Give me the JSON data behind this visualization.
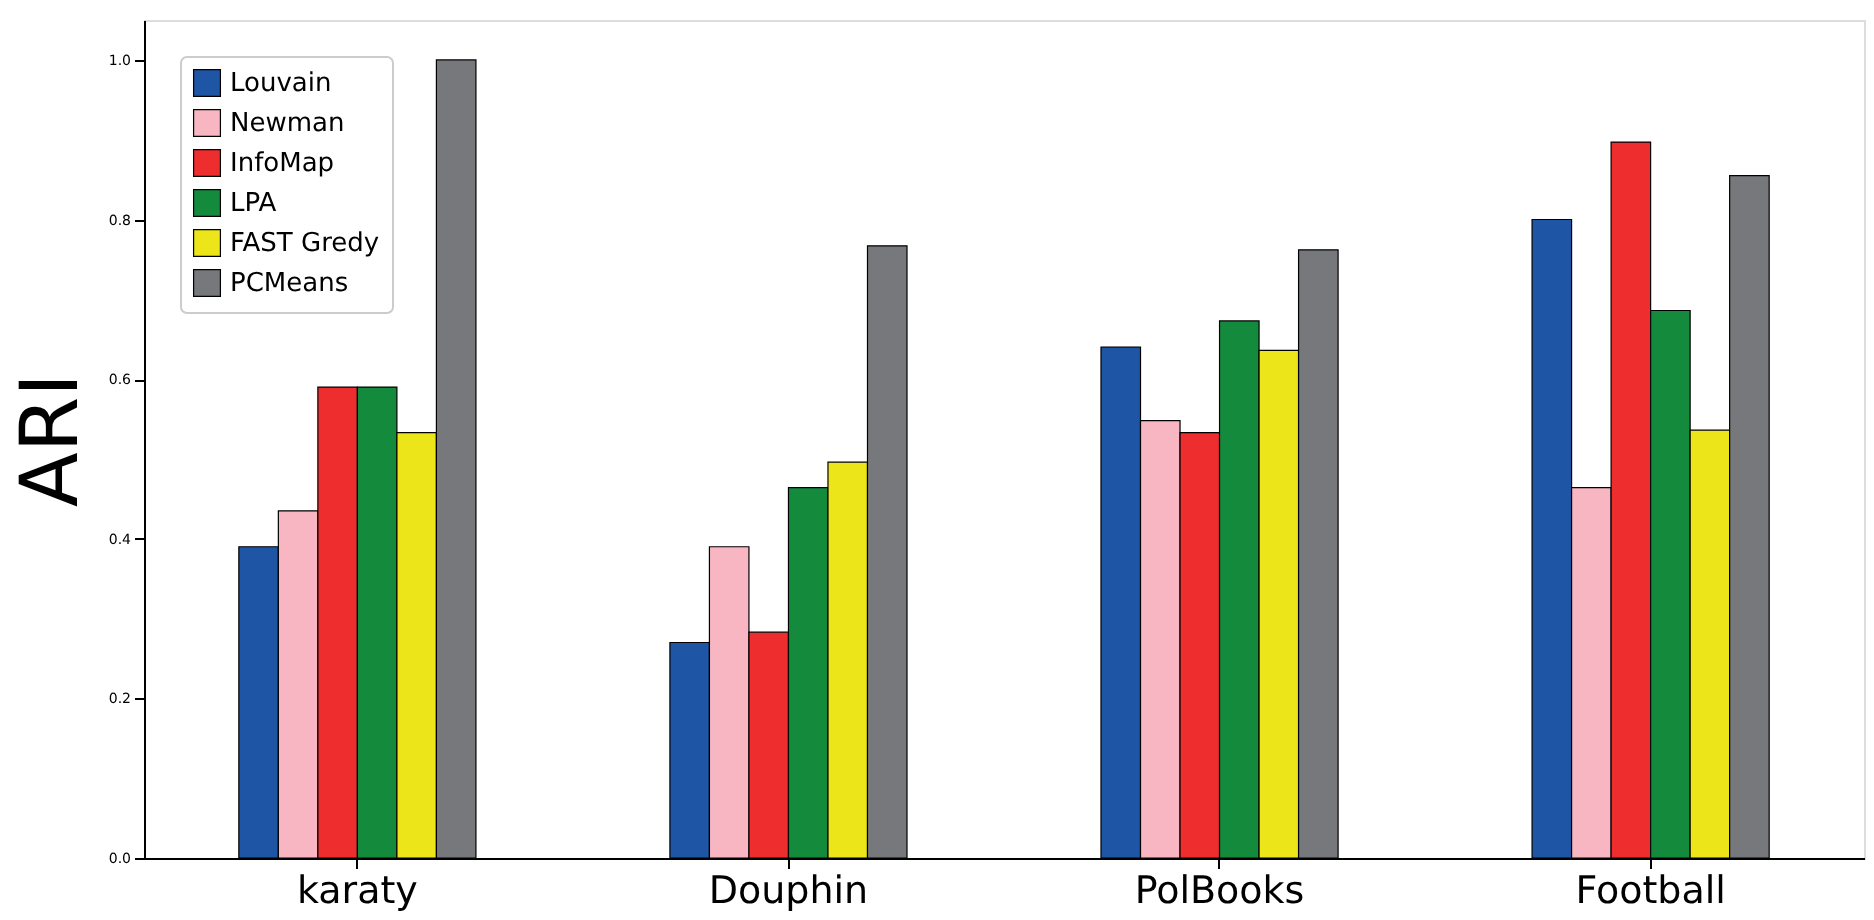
{
  "chart_data": {
    "type": "bar",
    "ylabel": "ARI",
    "categories": [
      "karaty",
      "Douphin",
      "PolBooks",
      "Football"
    ],
    "series": [
      {
        "name": "Louvain",
        "color": "#1f55a5",
        "values": [
          0.39,
          0.27,
          0.64,
          0.8
        ]
      },
      {
        "name": "Newman",
        "color": "#f7b6c1",
        "values": [
          0.435,
          0.39,
          0.548,
          0.464
        ]
      },
      {
        "name": "InfoMap",
        "color": "#ee2d2e",
        "values": [
          0.59,
          0.283,
          0.533,
          0.897
        ]
      },
      {
        "name": "LPA",
        "color": "#148a3c",
        "values": [
          0.59,
          0.464,
          0.673,
          0.686
        ]
      },
      {
        "name": "FAST Gredy",
        "color": "#ebe51a",
        "values": [
          0.533,
          0.496,
          0.636,
          0.536
        ]
      },
      {
        "name": "PCMeans",
        "color": "#76787b",
        "values": [
          1.0,
          0.767,
          0.762,
          0.855
        ]
      }
    ],
    "ylim": [
      0,
      1.05
    ],
    "yticks": [
      {
        "value": 0,
        "label": "0.0"
      },
      0.2,
      0.4,
      0.6,
      0.8,
      {
        "value": 1,
        "label": "1.0"
      }
    ],
    "legend": "top left",
    "grid": false
  }
}
